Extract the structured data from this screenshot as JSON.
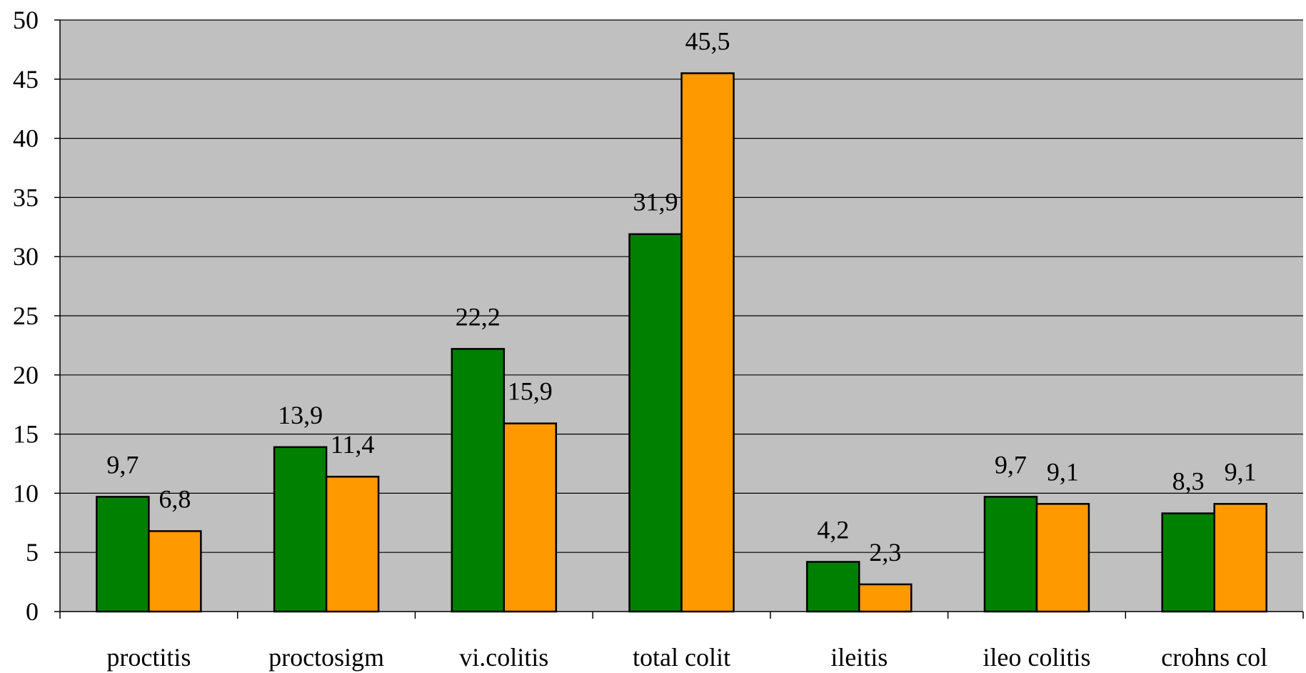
{
  "chart_data": {
    "type": "bar",
    "categories": [
      "proctitis",
      "proctosigm",
      "vi.colitis",
      "total colit",
      "ileitis",
      "ileo colitis",
      "crohns col"
    ],
    "series": [
      {
        "values": [
          9.7,
          13.9,
          22.2,
          31.9,
          4.2,
          9.7,
          8.3
        ],
        "labels": [
          "9,7",
          "13,9",
          "22,2",
          "31,9",
          "4,2",
          "9,7",
          "8,3"
        ],
        "color": "#008000"
      },
      {
        "values": [
          6.8,
          11.4,
          15.9,
          45.5,
          2.3,
          9.1,
          9.1
        ],
        "labels": [
          "6,8",
          "11,4",
          "15,9",
          "45,5",
          "2,3",
          "9,1",
          "9,1"
        ],
        "color": "#FF9900"
      }
    ],
    "ylim": [
      0,
      50
    ],
    "yticks": [
      0,
      5,
      10,
      15,
      20,
      25,
      30,
      35,
      40,
      45,
      50
    ],
    "ytick_labels": [
      "0",
      "5",
      "10",
      "15",
      "20",
      "25",
      "30",
      "35",
      "40",
      "45",
      "50"
    ],
    "grid": true,
    "plot_background": "#C0C0C0",
    "title": "",
    "xlabel": "",
    "ylabel": ""
  }
}
